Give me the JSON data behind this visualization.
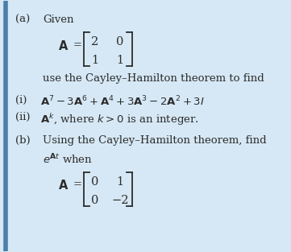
{
  "bg_color": "#d6e8f5",
  "text_color": "#2c2c2c",
  "left_bar_color": "#4a7fa8",
  "part_a_label": "(a)",
  "given_text": "Given",
  "matrix_A1_rows": [
    [
      "2",
      "0"
    ],
    [
      "1",
      "1"
    ]
  ],
  "use_text": "use the Cayley–Hamilton theorem to find",
  "item_i_label": "(i)",
  "item_ii_label": "(ii)",
  "part_b_label": "(b)",
  "part_b_text1": "Using the Cayley–Hamilton theorem, find",
  "matrix_A2_rows": [
    [
      "0",
      "1"
    ],
    [
      "0",
      "−2"
    ]
  ],
  "fig_width": 3.61,
  "fig_height": 3.13,
  "dpi": 100
}
